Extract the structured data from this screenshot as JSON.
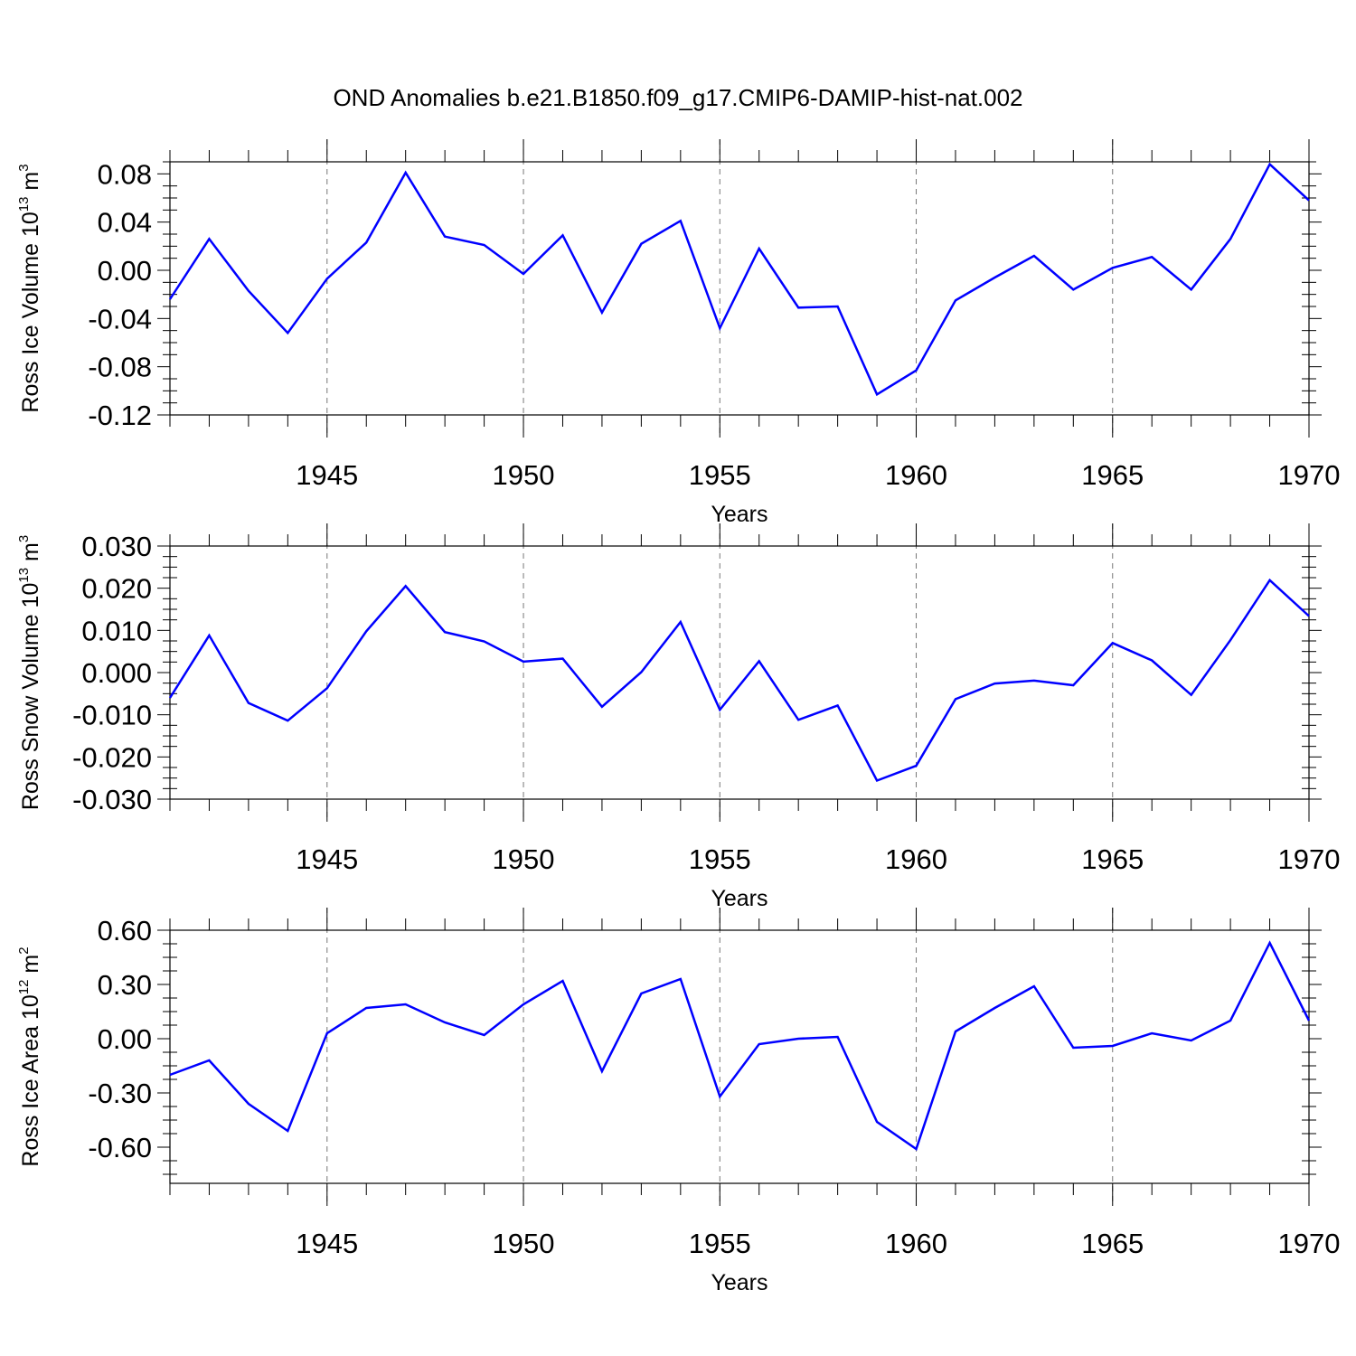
{
  "title": "OND Anomalies b.e21.B1850.f09_g17.CMIP6-DAMIP-hist-nat.002",
  "colors": {
    "series": "#0000ff",
    "axis": "#000000",
    "grid": "#777777"
  },
  "chart_data": [
    {
      "type": "line",
      "ylabel": {
        "text": "Ross Ice Volume 10",
        "sup": "13",
        "unit": " m",
        "unit_sup": "3"
      },
      "xlabel": "Years",
      "xlim": [
        1941,
        1970
      ],
      "ylim": [
        -0.12,
        0.09
      ],
      "x_ticks": [
        "1945",
        "1950",
        "1955",
        "1960",
        "1965",
        "1970"
      ],
      "y_ticks": [
        "0.08",
        "0.04",
        "0.00",
        "-0.04",
        "-0.08",
        "-0.12"
      ],
      "x": [
        1941,
        1942,
        1943,
        1944,
        1945,
        1946,
        1947,
        1948,
        1949,
        1950,
        1951,
        1952,
        1953,
        1954,
        1955,
        1956,
        1957,
        1958,
        1959,
        1960,
        1961,
        1962,
        1963,
        1964,
        1965,
        1966,
        1967,
        1968,
        1969,
        1970
      ],
      "series": [
        {
          "values": [
            -0.024,
            0.026,
            -0.017,
            -0.052,
            -0.007,
            0.023,
            0.081,
            0.028,
            0.021,
            -0.003,
            0.029,
            -0.035,
            0.022,
            0.041,
            -0.048,
            0.018,
            -0.031,
            -0.03,
            -0.103,
            -0.083,
            -0.025,
            -0.006,
            0.012,
            -0.016,
            0.002,
            0.011,
            -0.016,
            0.026,
            0.088,
            0.058
          ]
        }
      ],
      "grid": "vertical-dashed"
    },
    {
      "type": "line",
      "ylabel": {
        "text": "Ross Snow Volume 10",
        "sup": "13",
        "unit": " m",
        "unit_sup": "3"
      },
      "xlabel": "Years",
      "xlim": [
        1941,
        1970
      ],
      "ylim": [
        -0.03,
        0.03
      ],
      "x_ticks": [
        "1945",
        "1950",
        "1955",
        "1960",
        "1965",
        "1970"
      ],
      "y_ticks": [
        "0.030",
        "0.020",
        "0.010",
        "0.000",
        "-0.010",
        "-0.020",
        "-0.030"
      ],
      "x": [
        1941,
        1942,
        1943,
        1944,
        1945,
        1946,
        1947,
        1948,
        1949,
        1950,
        1951,
        1952,
        1953,
        1954,
        1955,
        1956,
        1957,
        1958,
        1959,
        1960,
        1961,
        1962,
        1963,
        1964,
        1965,
        1966,
        1967,
        1968,
        1969,
        1970
      ],
      "series": [
        {
          "values": [
            -0.006,
            0.0088,
            -0.0072,
            -0.0114,
            -0.0037,
            0.0098,
            0.0205,
            0.0096,
            0.0074,
            0.0026,
            0.0033,
            -0.0081,
            0.0001,
            0.012,
            -0.0088,
            0.0027,
            -0.0112,
            -0.0078,
            -0.0256,
            -0.0221,
            -0.0063,
            -0.0026,
            -0.0019,
            -0.003,
            0.007,
            0.0029,
            -0.0053,
            0.0077,
            0.0219,
            0.0134
          ]
        }
      ],
      "grid": "vertical-dashed"
    },
    {
      "type": "line",
      "ylabel": {
        "text": "Ross Ice Area 10",
        "sup": "12",
        "unit": " m",
        "unit_sup": "2"
      },
      "xlabel": "Years",
      "xlim": [
        1941,
        1970
      ],
      "ylim": [
        -0.8,
        0.6
      ],
      "x_ticks": [
        "1945",
        "1950",
        "1955",
        "1960",
        "1965",
        "1970"
      ],
      "y_ticks": [
        "0.60",
        "0.30",
        "0.00",
        "-0.30",
        "-0.60"
      ],
      "x": [
        1941,
        1942,
        1943,
        1944,
        1945,
        1946,
        1947,
        1948,
        1949,
        1950,
        1951,
        1952,
        1953,
        1954,
        1955,
        1956,
        1957,
        1958,
        1959,
        1960,
        1961,
        1962,
        1963,
        1964,
        1965,
        1966,
        1967,
        1968,
        1969,
        1970
      ],
      "series": [
        {
          "values": [
            -0.2,
            -0.12,
            -0.36,
            -0.51,
            0.03,
            0.17,
            0.19,
            0.09,
            0.02,
            0.19,
            0.32,
            -0.18,
            0.25,
            0.33,
            -0.32,
            -0.03,
            0.0,
            0.01,
            -0.46,
            -0.61,
            0.04,
            0.17,
            0.29,
            -0.05,
            -0.04,
            0.03,
            -0.01,
            0.1,
            0.53,
            0.1
          ]
        }
      ],
      "grid": "vertical-dashed"
    }
  ]
}
